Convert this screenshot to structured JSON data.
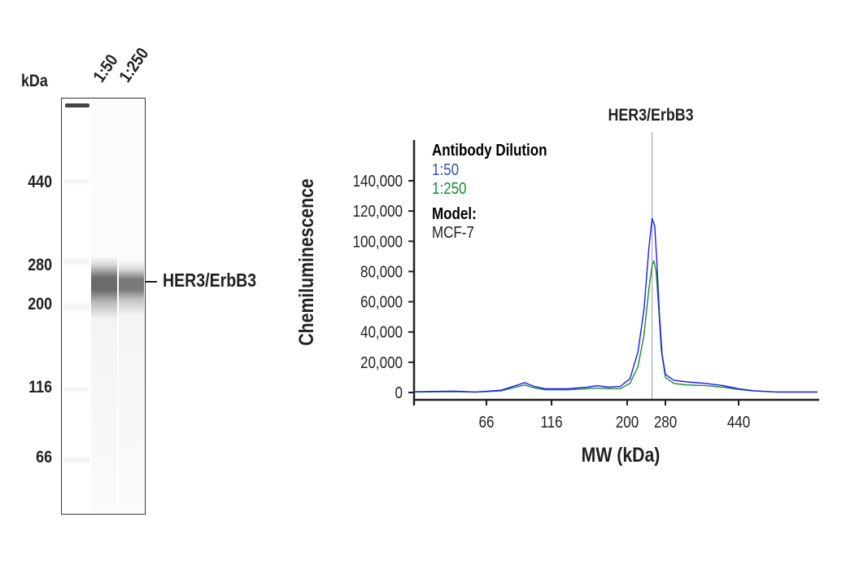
{
  "blot": {
    "unit_label": "kDa",
    "lanes": [
      "1:50",
      "1:250"
    ],
    "markers": [
      "440",
      "280",
      "200",
      "116",
      "66"
    ],
    "band_label": "HER3/ErbB3"
  },
  "chart_data": {
    "type": "line",
    "title": "HER3/ErbB3",
    "xlabel": "MW (kDa)",
    "ylabel": "Chemiluminescence",
    "xticks": [
      "66",
      "116",
      "200",
      "280",
      "440"
    ],
    "yticks": [
      "0",
      "20,000",
      "40,000",
      "60,000",
      "80,000",
      "100,000",
      "120,000",
      "140,000"
    ],
    "ylim": [
      0,
      150000
    ],
    "xlim": [
      35,
      700
    ],
    "reference_line_mw": 249,
    "grid": false,
    "legend": {
      "title": "Antibody Dilution",
      "placement": "top-left",
      "model_label": "Model:",
      "model_value": "MCF-7"
    },
    "series": [
      {
        "name": "1:50",
        "color": "#1a1aff",
        "legend_color": "#3a4fa8",
        "x": [
          35,
          50,
          60,
          75,
          85,
          92,
          100,
          110,
          130,
          150,
          161,
          175,
          190,
          205,
          220,
          232,
          242,
          249,
          255,
          260,
          266,
          272,
          280,
          295,
          320,
          360,
          400,
          440,
          480,
          550,
          700
        ],
        "y": [
          500,
          900,
          300,
          1500,
          4500,
          6500,
          4000,
          2500,
          2500,
          3500,
          4500,
          3500,
          4000,
          9000,
          27000,
          55000,
          95000,
          115000,
          110000,
          85000,
          50000,
          25000,
          12000,
          8000,
          7000,
          6000,
          4500,
          2500,
          1200,
          300,
          300
        ]
      },
      {
        "name": "1:250",
        "color": "#1a8c2a",
        "legend_color": "#138a3e",
        "x": [
          35,
          50,
          60,
          75,
          85,
          92,
          100,
          110,
          130,
          150,
          161,
          175,
          190,
          205,
          220,
          232,
          242,
          249,
          253,
          258,
          264,
          270,
          280,
          295,
          320,
          360,
          400,
          440,
          480,
          550,
          700
        ],
        "y": [
          300,
          500,
          200,
          1000,
          3500,
          5000,
          3000,
          1800,
          1800,
          2500,
          3000,
          2500,
          2500,
          6000,
          17000,
          38000,
          68000,
          84000,
          87000,
          80000,
          55000,
          28000,
          10000,
          6000,
          5000,
          4500,
          3500,
          2000,
          1000,
          300,
          300
        ]
      }
    ]
  }
}
